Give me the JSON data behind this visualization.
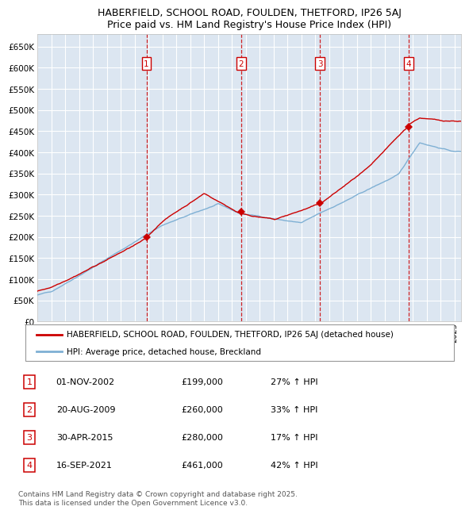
{
  "title": "HABERFIELD, SCHOOL ROAD, FOULDEN, THETFORD, IP26 5AJ",
  "subtitle": "Price paid vs. HM Land Registry's House Price Index (HPI)",
  "ylim": [
    0,
    680000
  ],
  "yticks": [
    0,
    50000,
    100000,
    150000,
    200000,
    250000,
    300000,
    350000,
    400000,
    450000,
    500000,
    550000,
    600000,
    650000
  ],
  "xlim_start": 1995.0,
  "xlim_end": 2025.5,
  "plot_bg_color": "#dce6f1",
  "grid_color": "#ffffff",
  "red_line_color": "#cc0000",
  "blue_line_color": "#7fb0d4",
  "purchase_dates": [
    2002.84,
    2009.64,
    2015.33,
    2021.71
  ],
  "purchase_prices": [
    199000,
    260000,
    280000,
    461000
  ],
  "purchase_labels": [
    "1",
    "2",
    "3",
    "4"
  ],
  "legend_red": "HABERFIELD, SCHOOL ROAD, FOULDEN, THETFORD, IP26 5AJ (detached house)",
  "legend_blue": "HPI: Average price, detached house, Breckland",
  "table_rows": [
    [
      "1",
      "01-NOV-2002",
      "£199,000",
      "27% ↑ HPI"
    ],
    [
      "2",
      "20-AUG-2009",
      "£260,000",
      "33% ↑ HPI"
    ],
    [
      "3",
      "30-APR-2015",
      "£280,000",
      "17% ↑ HPI"
    ],
    [
      "4",
      "16-SEP-2021",
      "£461,000",
      "42% ↑ HPI"
    ]
  ],
  "footnote": "Contains HM Land Registry data © Crown copyright and database right 2025.\nThis data is licensed under the Open Government Licence v3.0."
}
